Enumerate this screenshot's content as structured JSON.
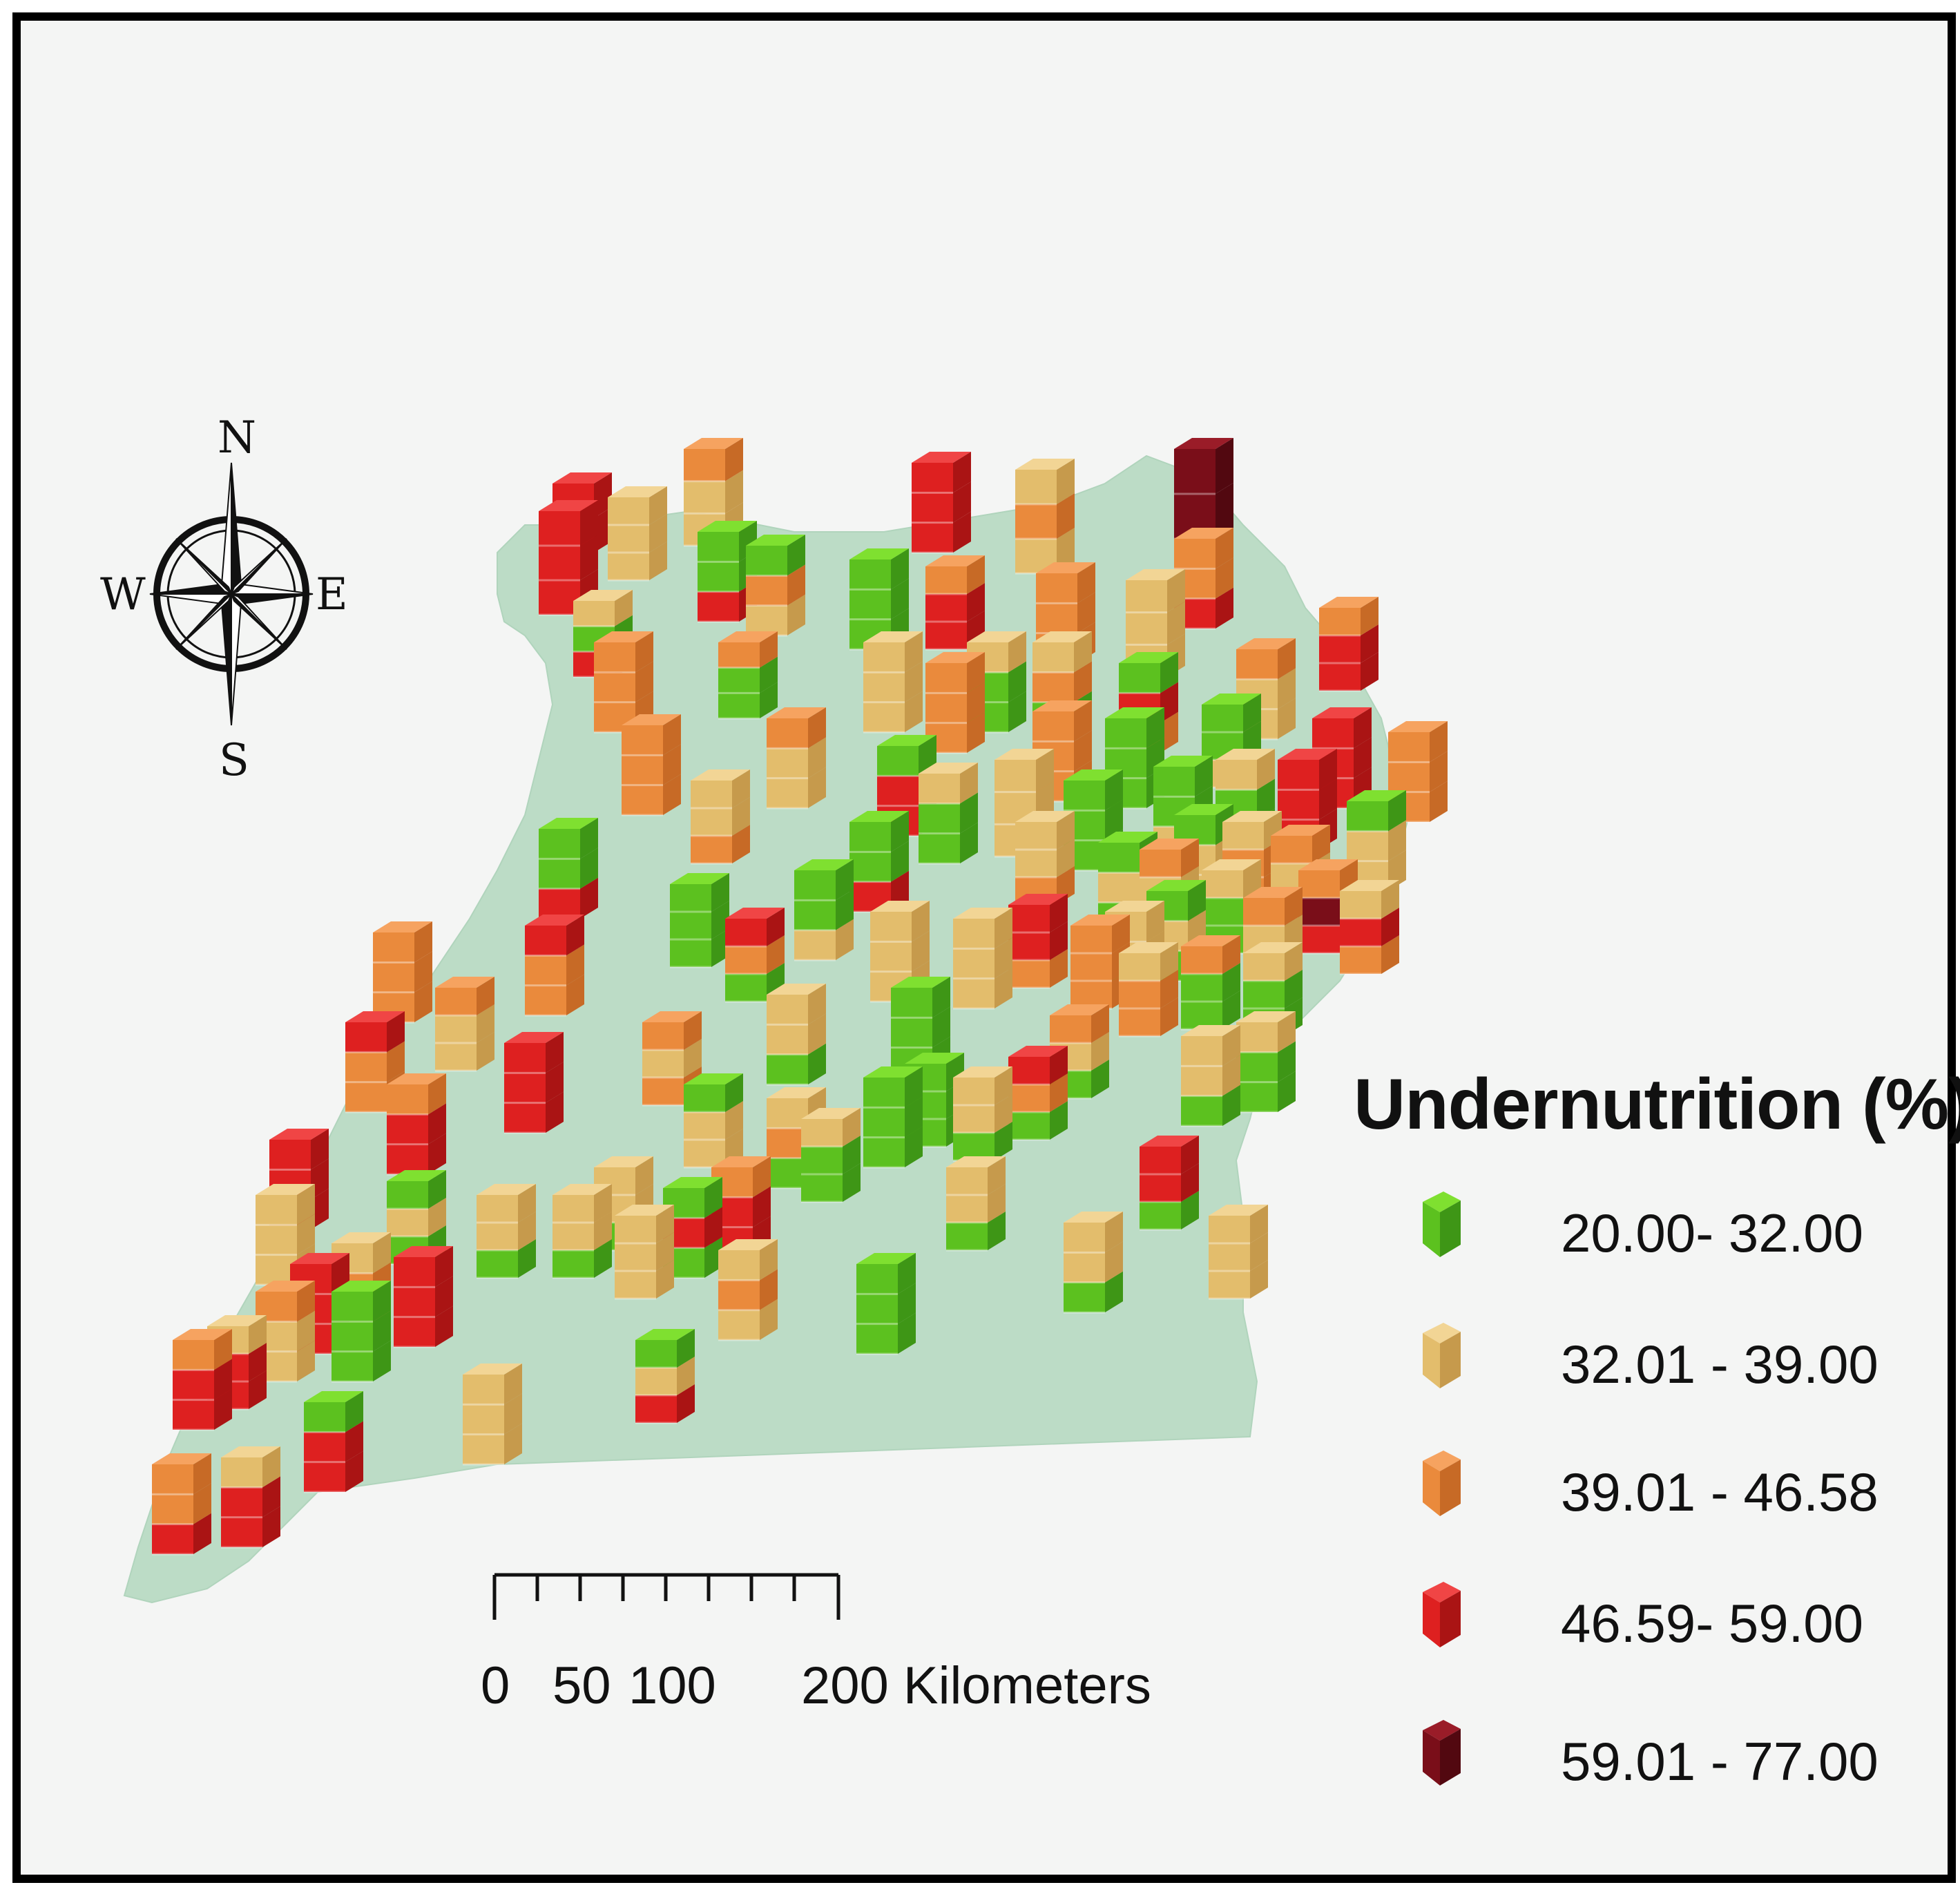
{
  "legend": {
    "title": "Undernutrition (%)",
    "classes": [
      {
        "label": "20.00- 32.00",
        "top": "#7fe030",
        "front": "#5cc11f",
        "side": "#3e9616"
      },
      {
        "label": "32.01 - 39.00",
        "top": "#f2d595",
        "front": "#e3bd6c",
        "side": "#c69a4c"
      },
      {
        "label": "39.01 - 46.58",
        "top": "#f6a360",
        "front": "#ea8a3c",
        "side": "#c76a26"
      },
      {
        "label": "46.59- 59.00",
        "top": "#f04545",
        "front": "#de2020",
        "side": "#aa1414"
      },
      {
        "label": "59.01 - 77.00",
        "top": "#9a1c28",
        "front": "#7a0e19",
        "side": "#520810"
      }
    ]
  },
  "compass": {
    "n": "N",
    "s": "S",
    "e": "E",
    "w": "W"
  },
  "scale_bar": {
    "ticks": [
      "0",
      "50",
      "100"
    ],
    "end_label": "200 Kilometers"
  },
  "map": {
    "region_color": "#bcdcc6"
  }
}
